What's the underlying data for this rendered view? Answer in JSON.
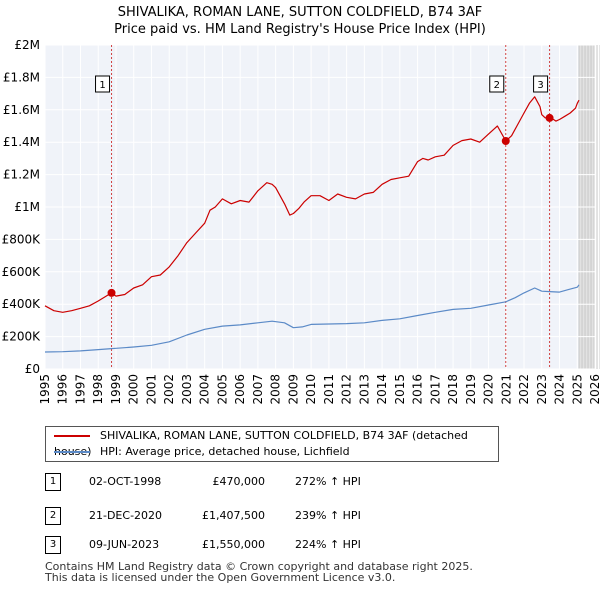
{
  "chart_data": {
    "type": "line",
    "title": "SHIVALIKA, ROMAN LANE, SUTTON COLDFIELD, B74 3AF",
    "subtitle": "Price paid vs. HM Land Registry's House Price Index (HPI)",
    "xlim": [
      1995,
      2026
    ],
    "ylim": [
      0,
      2000000
    ],
    "x_ticks": [
      "1995",
      "1996",
      "1997",
      "1998",
      "1999",
      "2000",
      "2001",
      "2002",
      "2003",
      "2004",
      "2005",
      "2006",
      "2007",
      "2008",
      "2009",
      "2010",
      "2011",
      "2012",
      "2013",
      "2014",
      "2015",
      "2016",
      "2017",
      "2018",
      "2019",
      "2020",
      "2021",
      "2022",
      "2023",
      "2024",
      "2025",
      "2026"
    ],
    "y_ticks": [
      {
        "value": 0,
        "label": "£0"
      },
      {
        "value": 200000,
        "label": "£200K"
      },
      {
        "value": 400000,
        "label": "£400K"
      },
      {
        "value": 600000,
        "label": "£600K"
      },
      {
        "value": 800000,
        "label": "£800K"
      },
      {
        "value": 1000000,
        "label": "£1M"
      },
      {
        "value": 1200000,
        "label": "£1.2M"
      },
      {
        "value": 1400000,
        "label": "£1.4M"
      },
      {
        "value": 1600000,
        "label": "£1.6M"
      },
      {
        "value": 1800000,
        "label": "£1.8M"
      },
      {
        "value": 2000000,
        "label": "£2M"
      }
    ],
    "grid": true,
    "series": [
      {
        "name": "SHIVALIKA, ROMAN LANE, SUTTON COLDFIELD, B74 3AF (detached house)",
        "color": "#cc0000",
        "x": [
          1995.0,
          1995.5,
          1996.0,
          1996.5,
          1997.0,
          1997.5,
          1998.0,
          1998.75,
          1999.0,
          1999.5,
          2000.0,
          2000.5,
          2001.0,
          2001.5,
          2002.0,
          2002.5,
          2003.0,
          2003.5,
          2004.0,
          2004.3,
          2004.6,
          2005.0,
          2005.5,
          2006.0,
          2006.5,
          2007.0,
          2007.5,
          2007.8,
          2008.0,
          2008.5,
          2008.8,
          2009.0,
          2009.3,
          2009.6,
          2010.0,
          2010.5,
          2011.0,
          2011.5,
          2012.0,
          2012.5,
          2013.0,
          2013.5,
          2014.0,
          2014.5,
          2015.0,
          2015.5,
          2016.0,
          2016.3,
          2016.6,
          2017.0,
          2017.5,
          2018.0,
          2018.5,
          2019.0,
          2019.5,
          2020.0,
          2020.5,
          2020.97,
          2021.0,
          2021.3,
          2021.6,
          2022.0,
          2022.3,
          2022.6,
          2022.9,
          2023.0,
          2023.2,
          2023.44,
          2023.6,
          2023.8,
          2024.0,
          2024.3,
          2024.6,
          2024.9,
          2025.0,
          2025.1
        ],
        "y": [
          390000,
          360000,
          350000,
          360000,
          375000,
          390000,
          420000,
          470000,
          450000,
          460000,
          500000,
          520000,
          570000,
          580000,
          630000,
          700000,
          780000,
          840000,
          900000,
          980000,
          1000000,
          1050000,
          1020000,
          1040000,
          1030000,
          1100000,
          1150000,
          1140000,
          1120000,
          1020000,
          950000,
          960000,
          990000,
          1030000,
          1070000,
          1070000,
          1040000,
          1080000,
          1060000,
          1050000,
          1080000,
          1090000,
          1140000,
          1170000,
          1180000,
          1190000,
          1280000,
          1300000,
          1290000,
          1310000,
          1320000,
          1380000,
          1410000,
          1420000,
          1400000,
          1450000,
          1500000,
          1407500,
          1410000,
          1440000,
          1500000,
          1580000,
          1640000,
          1680000,
          1620000,
          1570000,
          1550000,
          1550000,
          1545000,
          1530000,
          1540000,
          1560000,
          1580000,
          1610000,
          1640000,
          1660000
        ]
      },
      {
        "name": "HPI: Average price, detached house, Lichfield",
        "color": "#5b8ac7",
        "x": [
          1995.0,
          1996.0,
          1997.0,
          1998.0,
          1998.75,
          1999.0,
          2000.0,
          2001.0,
          2002.0,
          2003.0,
          2004.0,
          2005.0,
          2006.0,
          2007.0,
          2007.8,
          2008.5,
          2009.0,
          2009.5,
          2010.0,
          2011.0,
          2012.0,
          2013.0,
          2014.0,
          2015.0,
          2016.0,
          2017.0,
          2018.0,
          2019.0,
          2020.0,
          2020.97,
          2021.5,
          2022.0,
          2022.6,
          2023.0,
          2023.44,
          2024.0,
          2024.5,
          2025.0,
          2025.1
        ],
        "y": [
          105000,
          107000,
          112000,
          120000,
          126000,
          128000,
          136000,
          146000,
          168000,
          210000,
          245000,
          265000,
          272000,
          285000,
          295000,
          285000,
          255000,
          260000,
          275000,
          278000,
          280000,
          285000,
          300000,
          310000,
          330000,
          350000,
          368000,
          375000,
          395000,
          415000,
          440000,
          470000,
          500000,
          480000,
          478000,
          475000,
          490000,
          505000,
          520000
        ]
      }
    ],
    "sales": [
      {
        "num": "1",
        "x": 1998.75,
        "y": 470000
      },
      {
        "num": "2",
        "x": 2020.97,
        "y": 1407500
      },
      {
        "num": "3",
        "x": 2023.44,
        "y": 1550000
      }
    ],
    "forecast_from": 2025.1
  },
  "legend": {
    "property": "SHIVALIKA, ROMAN LANE, SUTTON COLDFIELD, B74 3AF (detached house)",
    "hpi": "HPI: Average price, detached house, Lichfield"
  },
  "transactions": [
    {
      "num": "1",
      "date": "02-OCT-1998",
      "price": "£470,000",
      "hpi": "272% ↑ HPI"
    },
    {
      "num": "2",
      "date": "21-DEC-2020",
      "price": "£1,407,500",
      "hpi": "239% ↑ HPI"
    },
    {
      "num": "3",
      "date": "09-JUN-2023",
      "price": "£1,550,000",
      "hpi": "224% ↑ HPI"
    }
  ],
  "footer": {
    "line1": "Contains HM Land Registry data © Crown copyright and database right 2025.",
    "line2": "This data is licensed under the Open Government Licence v3.0."
  }
}
